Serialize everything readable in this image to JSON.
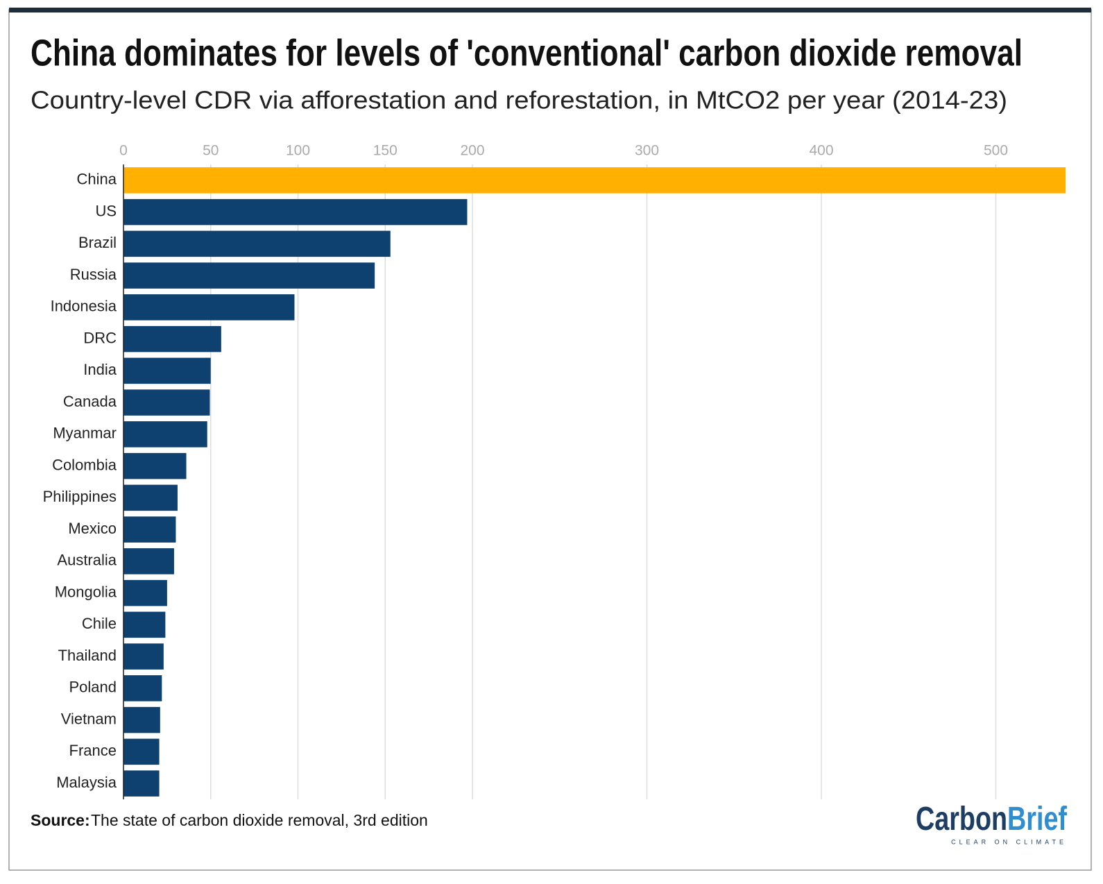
{
  "chart_data": {
    "type": "bar",
    "orientation": "horizontal",
    "title": "China dominates for levels of 'conventional' carbon dioxide removal",
    "subtitle": "Country-level CDR via afforestation and reforestation, in MtCO2 per year (2014-23)",
    "categories": [
      "China",
      "US",
      "Brazil",
      "Russia",
      "Indonesia",
      "DRC",
      "India",
      "Canada",
      "Myanmar",
      "Colombia",
      "Philippines",
      "Mexico",
      "Australia",
      "Mongolia",
      "Chile",
      "Thailand",
      "Poland",
      "Vietnam",
      "France",
      "Malaysia"
    ],
    "values": [
      540,
      197,
      153,
      144,
      98,
      56,
      50,
      49.5,
      48,
      36,
      31,
      30,
      29,
      25,
      24,
      23,
      22,
      21,
      20.5,
      20.5
    ],
    "colors": [
      "#ffb000",
      "#0e416f",
      "#0e416f",
      "#0e416f",
      "#0e416f",
      "#0e416f",
      "#0e416f",
      "#0e416f",
      "#0e416f",
      "#0e416f",
      "#0e416f",
      "#0e416f",
      "#0e416f",
      "#0e416f",
      "#0e416f",
      "#0e416f",
      "#0e416f",
      "#0e416f",
      "#0e416f",
      "#0e416f"
    ],
    "xlim": [
      0,
      545
    ],
    "xticks": [
      0,
      50,
      100,
      150,
      200,
      300,
      400,
      500
    ],
    "grid": true,
    "source_label": "Source:",
    "source": "The state of carbon dioxide removal, 3rd edition",
    "logo_main": "Carbon",
    "logo_accent": "Brief",
    "logo_tagline": "CLEAR ON CLIMATE"
  }
}
